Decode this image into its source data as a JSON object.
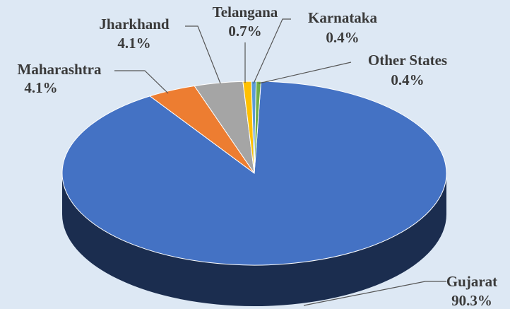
{
  "chart_data": {
    "type": "pie",
    "categories": [
      "Gujarat",
      "Maharashtra",
      "Jharkhand",
      "Telangana",
      "Karnataka",
      "Other States"
    ],
    "values": [
      90.3,
      4.1,
      4.1,
      0.7,
      0.4,
      0.4
    ],
    "value_labels": [
      "90.3%",
      "4.1%",
      "4.1%",
      "0.7%",
      "0.4%",
      "0.4%"
    ],
    "colors": [
      "#4472c4",
      "#ed7d31",
      "#a5a5a5",
      "#ffc000",
      "#5b9bd5",
      "#70ad47"
    ]
  }
}
